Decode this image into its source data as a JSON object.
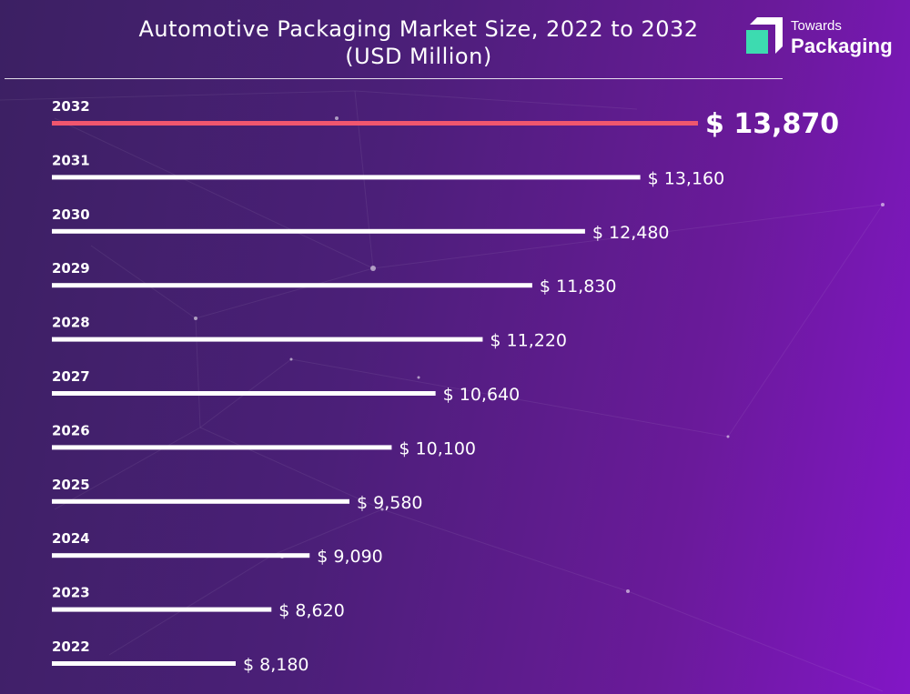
{
  "header": {
    "title_line1": "Automotive Packaging Market Size, 2022 to 2032",
    "title_line2": "(USD Million)"
  },
  "logo": {
    "line1": "Towards",
    "line2": "Packaging",
    "icon": "towards-packaging-logo-icon",
    "colors": {
      "mark_front": "#3ddbb0",
      "mark_back": "#ffffff"
    }
  },
  "colors": {
    "bar": "#ffffff",
    "highlight_bar": "#f0566e",
    "background_start": "#3c2063",
    "background_end": "#8216c6"
  },
  "chart_data": {
    "type": "bar",
    "orientation": "horizontal",
    "title": "Automotive Packaging Market Size, 2022 to 2032 (USD Million)",
    "xlabel": "",
    "ylabel": "",
    "unit_prefix": "$",
    "categories": [
      "2032",
      "2031",
      "2030",
      "2029",
      "2028",
      "2027",
      "2026",
      "2025",
      "2024",
      "2023",
      "2022"
    ],
    "values": [
      13870,
      13160,
      12480,
      11830,
      11220,
      10640,
      10100,
      9580,
      9090,
      8620,
      8180
    ],
    "value_labels": [
      "$ 13,870",
      "$ 13,160",
      "$ 12,480",
      "$ 11,830",
      "$ 11,220",
      "$ 10,640",
      "$ 10,100",
      "$ 9,580",
      "$ 9,090",
      "$ 8,620",
      "$ 8,180"
    ],
    "highlight_category": "2032",
    "grid": false,
    "legend": "none"
  }
}
